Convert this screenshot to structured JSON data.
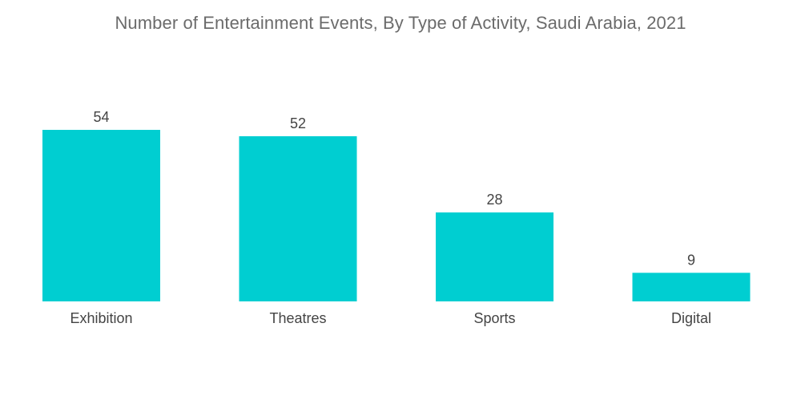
{
  "chart_data": {
    "type": "bar",
    "title": "Number of Entertainment Events, By Type of Activity, Saudi Arabia, 2021",
    "categories": [
      "Exhibition",
      "Theatres",
      "Sports",
      "Digital"
    ],
    "values": [
      54,
      52,
      28,
      9
    ],
    "xlabel": "",
    "ylabel": "",
    "ylim": [
      0,
      54
    ],
    "grid": false,
    "legend": "none",
    "colors": {
      "bar": "#00CED1",
      "text": "#444444",
      "title": "#6b6b6b"
    }
  }
}
